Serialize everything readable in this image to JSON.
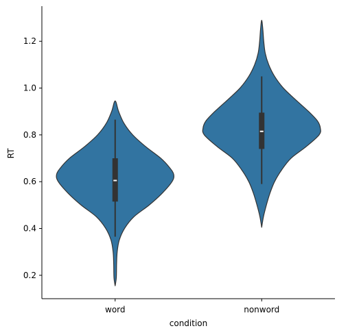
{
  "chart_data": {
    "type": "violin",
    "title": "",
    "xlabel": "condition",
    "ylabel": "RT",
    "categories": [
      "word",
      "nonword"
    ],
    "ylim": [
      0.1,
      1.35
    ],
    "yticks": [
      0.2,
      0.4,
      0.6,
      0.8,
      1.0,
      1.2
    ],
    "ytick_labels": [
      "0.2",
      "0.4",
      "0.6",
      "0.8",
      "1.0",
      "1.2"
    ],
    "grid": false,
    "colors": {
      "fill": "#3274a1",
      "outline": "#333333",
      "box": "#333333",
      "median": "#ffffff"
    },
    "violins": [
      {
        "category": "word",
        "density_max_width": 0.5,
        "density": [
          [
            0.155,
            0.0
          ],
          [
            0.19,
            0.02
          ],
          [
            0.25,
            0.025
          ],
          [
            0.3,
            0.035
          ],
          [
            0.35,
            0.07
          ],
          [
            0.4,
            0.16
          ],
          [
            0.45,
            0.32
          ],
          [
            0.5,
            0.58
          ],
          [
            0.55,
            0.8
          ],
          [
            0.6,
            0.97
          ],
          [
            0.63,
            1.0
          ],
          [
            0.66,
            0.93
          ],
          [
            0.7,
            0.78
          ],
          [
            0.75,
            0.52
          ],
          [
            0.8,
            0.3
          ],
          [
            0.85,
            0.15
          ],
          [
            0.9,
            0.06
          ],
          [
            0.945,
            0.0
          ]
        ],
        "whisker": [
          0.365,
          0.865
        ],
        "q1": 0.515,
        "median": 0.605,
        "q3": 0.7
      },
      {
        "category": "nonword",
        "density_max_width": 0.5,
        "density": [
          [
            0.405,
            0.0
          ],
          [
            0.45,
            0.03
          ],
          [
            0.5,
            0.08
          ],
          [
            0.55,
            0.14
          ],
          [
            0.6,
            0.22
          ],
          [
            0.65,
            0.34
          ],
          [
            0.7,
            0.5
          ],
          [
            0.75,
            0.76
          ],
          [
            0.8,
            0.98
          ],
          [
            0.83,
            1.0
          ],
          [
            0.86,
            0.95
          ],
          [
            0.9,
            0.8
          ],
          [
            0.95,
            0.58
          ],
          [
            1.0,
            0.37
          ],
          [
            1.05,
            0.22
          ],
          [
            1.1,
            0.12
          ],
          [
            1.15,
            0.06
          ],
          [
            1.2,
            0.035
          ],
          [
            1.25,
            0.02
          ],
          [
            1.29,
            0.0
          ]
        ],
        "whisker": [
          0.59,
          1.05
        ],
        "q1": 0.74,
        "median": 0.815,
        "q3": 0.895
      }
    ]
  }
}
